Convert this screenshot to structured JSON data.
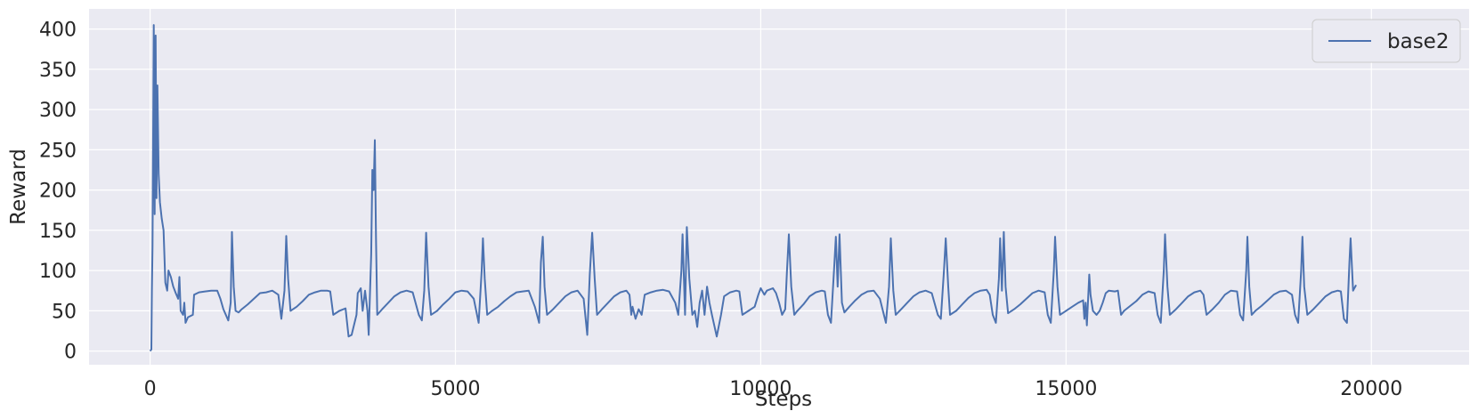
{
  "chart_data": {
    "type": "line",
    "xlabel": "Steps",
    "ylabel": "Reward",
    "xlim": [
      -1000,
      21600
    ],
    "ylim": [
      -17,
      425
    ],
    "x_ticks": [
      0,
      5000,
      10000,
      15000,
      20000
    ],
    "x_tick_labels": [
      "0",
      "5000",
      "10000",
      "15000",
      "20000"
    ],
    "y_ticks": [
      0,
      50,
      100,
      150,
      200,
      250,
      300,
      350,
      400
    ],
    "y_tick_labels": [
      "0",
      "50",
      "100",
      "150",
      "200",
      "250",
      "300",
      "350",
      "400"
    ],
    "grid": true,
    "legend_position": "top-right",
    "series": [
      {
        "name": "base2",
        "color": "#4c72b0",
        "points": [
          [
            0,
            0
          ],
          [
            20,
            2
          ],
          [
            30,
            75
          ],
          [
            40,
            130
          ],
          [
            60,
            405
          ],
          [
            75,
            170
          ],
          [
            90,
            392
          ],
          [
            105,
            190
          ],
          [
            120,
            330
          ],
          [
            140,
            220
          ],
          [
            160,
            185
          ],
          [
            190,
            165
          ],
          [
            220,
            150
          ],
          [
            250,
            85
          ],
          [
            280,
            75
          ],
          [
            300,
            100
          ],
          [
            340,
            92
          ],
          [
            380,
            80
          ],
          [
            420,
            72
          ],
          [
            460,
            65
          ],
          [
            480,
            92
          ],
          [
            500,
            50
          ],
          [
            540,
            45
          ],
          [
            560,
            60
          ],
          [
            580,
            35
          ],
          [
            620,
            42
          ],
          [
            700,
            45
          ],
          [
            720,
            70
          ],
          [
            800,
            73
          ],
          [
            900,
            74
          ],
          [
            1000,
            75
          ],
          [
            1100,
            75
          ],
          [
            1150,
            65
          ],
          [
            1200,
            52
          ],
          [
            1280,
            38
          ],
          [
            1320,
            60
          ],
          [
            1340,
            148
          ],
          [
            1370,
            80
          ],
          [
            1400,
            50
          ],
          [
            1450,
            48
          ],
          [
            1500,
            52
          ],
          [
            1600,
            58
          ],
          [
            1700,
            65
          ],
          [
            1800,
            72
          ],
          [
            1900,
            73
          ],
          [
            2000,
            75
          ],
          [
            2100,
            70
          ],
          [
            2150,
            40
          ],
          [
            2200,
            75
          ],
          [
            2230,
            143
          ],
          [
            2260,
            90
          ],
          [
            2300,
            50
          ],
          [
            2400,
            55
          ],
          [
            2500,
            62
          ],
          [
            2600,
            70
          ],
          [
            2700,
            73
          ],
          [
            2800,
            75
          ],
          [
            2900,
            75
          ],
          [
            2950,
            74
          ],
          [
            3000,
            45
          ],
          [
            3100,
            50
          ],
          [
            3200,
            53
          ],
          [
            3250,
            18
          ],
          [
            3300,
            20
          ],
          [
            3380,
            45
          ],
          [
            3400,
            72
          ],
          [
            3450,
            78
          ],
          [
            3480,
            50
          ],
          [
            3520,
            75
          ],
          [
            3560,
            50
          ],
          [
            3580,
            20
          ],
          [
            3620,
            120
          ],
          [
            3640,
            225
          ],
          [
            3660,
            200
          ],
          [
            3680,
            262
          ],
          [
            3700,
            140
          ],
          [
            3720,
            45
          ],
          [
            3800,
            52
          ],
          [
            3900,
            60
          ],
          [
            4000,
            68
          ],
          [
            4100,
            73
          ],
          [
            4200,
            75
          ],
          [
            4300,
            73
          ],
          [
            4400,
            45
          ],
          [
            4450,
            38
          ],
          [
            4490,
            75
          ],
          [
            4520,
            147
          ],
          [
            4560,
            80
          ],
          [
            4600,
            45
          ],
          [
            4700,
            50
          ],
          [
            4800,
            58
          ],
          [
            4900,
            65
          ],
          [
            5000,
            73
          ],
          [
            5100,
            75
          ],
          [
            5200,
            74
          ],
          [
            5300,
            65
          ],
          [
            5380,
            35
          ],
          [
            5430,
            100
          ],
          [
            5450,
            140
          ],
          [
            5480,
            90
          ],
          [
            5520,
            45
          ],
          [
            5600,
            50
          ],
          [
            5700,
            55
          ],
          [
            5800,
            62
          ],
          [
            5900,
            68
          ],
          [
            6000,
            73
          ],
          [
            6100,
            74
          ],
          [
            6200,
            75
          ],
          [
            6300,
            55
          ],
          [
            6370,
            35
          ],
          [
            6400,
            110
          ],
          [
            6430,
            142
          ],
          [
            6460,
            80
          ],
          [
            6500,
            45
          ],
          [
            6600,
            52
          ],
          [
            6700,
            60
          ],
          [
            6800,
            68
          ],
          [
            6900,
            73
          ],
          [
            7000,
            75
          ],
          [
            7100,
            65
          ],
          [
            7160,
            20
          ],
          [
            7200,
            95
          ],
          [
            7240,
            147
          ],
          [
            7280,
            90
          ],
          [
            7320,
            45
          ],
          [
            7400,
            52
          ],
          [
            7500,
            60
          ],
          [
            7600,
            68
          ],
          [
            7700,
            73
          ],
          [
            7800,
            75
          ],
          [
            7850,
            70
          ],
          [
            7880,
            45
          ],
          [
            7900,
            55
          ],
          [
            7950,
            40
          ],
          [
            8000,
            52
          ],
          [
            8050,
            45
          ],
          [
            8100,
            70
          ],
          [
            8200,
            73
          ],
          [
            8300,
            75
          ],
          [
            8400,
            76
          ],
          [
            8500,
            74
          ],
          [
            8600,
            60
          ],
          [
            8650,
            45
          ],
          [
            8700,
            100
          ],
          [
            8720,
            145
          ],
          [
            8760,
            45
          ],
          [
            8790,
            154
          ],
          [
            8830,
            90
          ],
          [
            8880,
            45
          ],
          [
            8920,
            50
          ],
          [
            8960,
            30
          ],
          [
            9000,
            60
          ],
          [
            9040,
            75
          ],
          [
            9080,
            45
          ],
          [
            9120,
            80
          ],
          [
            9160,
            60
          ],
          [
            9200,
            45
          ],
          [
            9280,
            18
          ],
          [
            9350,
            45
          ],
          [
            9400,
            68
          ],
          [
            9500,
            73
          ],
          [
            9600,
            75
          ],
          [
            9650,
            74
          ],
          [
            9700,
            45
          ],
          [
            9800,
            50
          ],
          [
            9900,
            55
          ],
          [
            9960,
            70
          ],
          [
            10000,
            78
          ],
          [
            10060,
            70
          ],
          [
            10100,
            75
          ],
          [
            10200,
            78
          ],
          [
            10250,
            72
          ],
          [
            10300,
            60
          ],
          [
            10350,
            45
          ],
          [
            10400,
            52
          ],
          [
            10430,
            100
          ],
          [
            10460,
            145
          ],
          [
            10500,
            80
          ],
          [
            10550,
            45
          ],
          [
            10600,
            50
          ],
          [
            10700,
            58
          ],
          [
            10800,
            68
          ],
          [
            10900,
            73
          ],
          [
            11000,
            75
          ],
          [
            11050,
            74
          ],
          [
            11100,
            45
          ],
          [
            11150,
            35
          ],
          [
            11200,
            100
          ],
          [
            11230,
            142
          ],
          [
            11260,
            80
          ],
          [
            11290,
            145
          ],
          [
            11330,
            60
          ],
          [
            11370,
            48
          ],
          [
            11450,
            55
          ],
          [
            11550,
            63
          ],
          [
            11650,
            70
          ],
          [
            11750,
            74
          ],
          [
            11850,
            75
          ],
          [
            11950,
            65
          ],
          [
            12050,
            35
          ],
          [
            12100,
            80
          ],
          [
            12130,
            140
          ],
          [
            12170,
            75
          ],
          [
            12210,
            45
          ],
          [
            12300,
            52
          ],
          [
            12400,
            60
          ],
          [
            12500,
            68
          ],
          [
            12600,
            73
          ],
          [
            12700,
            75
          ],
          [
            12800,
            72
          ],
          [
            12900,
            45
          ],
          [
            12950,
            40
          ],
          [
            13000,
            100
          ],
          [
            13030,
            140
          ],
          [
            13070,
            80
          ],
          [
            13100,
            45
          ],
          [
            13200,
            50
          ],
          [
            13300,
            58
          ],
          [
            13400,
            66
          ],
          [
            13500,
            72
          ],
          [
            13600,
            75
          ],
          [
            13700,
            76
          ],
          [
            13750,
            70
          ],
          [
            13800,
            45
          ],
          [
            13850,
            35
          ],
          [
            13900,
            90
          ],
          [
            13920,
            140
          ],
          [
            13950,
            75
          ],
          [
            13980,
            148
          ],
          [
            14010,
            80
          ],
          [
            14050,
            47
          ],
          [
            14150,
            52
          ],
          [
            14250,
            58
          ],
          [
            14350,
            65
          ],
          [
            14450,
            72
          ],
          [
            14550,
            75
          ],
          [
            14650,
            73
          ],
          [
            14700,
            45
          ],
          [
            14750,
            35
          ],
          [
            14800,
            100
          ],
          [
            14820,
            142
          ],
          [
            14860,
            80
          ],
          [
            14900,
            45
          ],
          [
            15000,
            50
          ],
          [
            15100,
            55
          ],
          [
            15200,
            60
          ],
          [
            15280,
            63
          ],
          [
            15300,
            40
          ],
          [
            15320,
            60
          ],
          [
            15340,
            32
          ],
          [
            15380,
            95
          ],
          [
            15400,
            70
          ],
          [
            15440,
            50
          ],
          [
            15500,
            45
          ],
          [
            15550,
            50
          ],
          [
            15600,
            60
          ],
          [
            15650,
            72
          ],
          [
            15700,
            75
          ],
          [
            15800,
            74
          ],
          [
            15850,
            75
          ],
          [
            15900,
            45
          ],
          [
            15950,
            50
          ],
          [
            16050,
            56
          ],
          [
            16150,
            62
          ],
          [
            16250,
            70
          ],
          [
            16350,
            74
          ],
          [
            16450,
            72
          ],
          [
            16500,
            45
          ],
          [
            16550,
            35
          ],
          [
            16600,
            100
          ],
          [
            16620,
            145
          ],
          [
            16660,
            80
          ],
          [
            16700,
            45
          ],
          [
            16800,
            52
          ],
          [
            16900,
            60
          ],
          [
            17000,
            68
          ],
          [
            17100,
            73
          ],
          [
            17200,
            75
          ],
          [
            17250,
            70
          ],
          [
            17300,
            45
          ],
          [
            17400,
            52
          ],
          [
            17500,
            60
          ],
          [
            17600,
            70
          ],
          [
            17700,
            75
          ],
          [
            17800,
            74
          ],
          [
            17850,
            45
          ],
          [
            17900,
            38
          ],
          [
            17950,
            100
          ],
          [
            17970,
            142
          ],
          [
            18000,
            80
          ],
          [
            18040,
            45
          ],
          [
            18100,
            50
          ],
          [
            18200,
            56
          ],
          [
            18300,
            63
          ],
          [
            18400,
            70
          ],
          [
            18500,
            74
          ],
          [
            18600,
            75
          ],
          [
            18700,
            70
          ],
          [
            18750,
            45
          ],
          [
            18800,
            35
          ],
          [
            18850,
            100
          ],
          [
            18870,
            142
          ],
          [
            18900,
            80
          ],
          [
            18950,
            45
          ],
          [
            19050,
            52
          ],
          [
            19150,
            60
          ],
          [
            19250,
            68
          ],
          [
            19350,
            73
          ],
          [
            19450,
            75
          ],
          [
            19500,
            74
          ],
          [
            19550,
            40
          ],
          [
            19600,
            35
          ],
          [
            19640,
            110
          ],
          [
            19660,
            140
          ],
          [
            19700,
            75
          ],
          [
            19750,
            82
          ]
        ]
      }
    ]
  }
}
